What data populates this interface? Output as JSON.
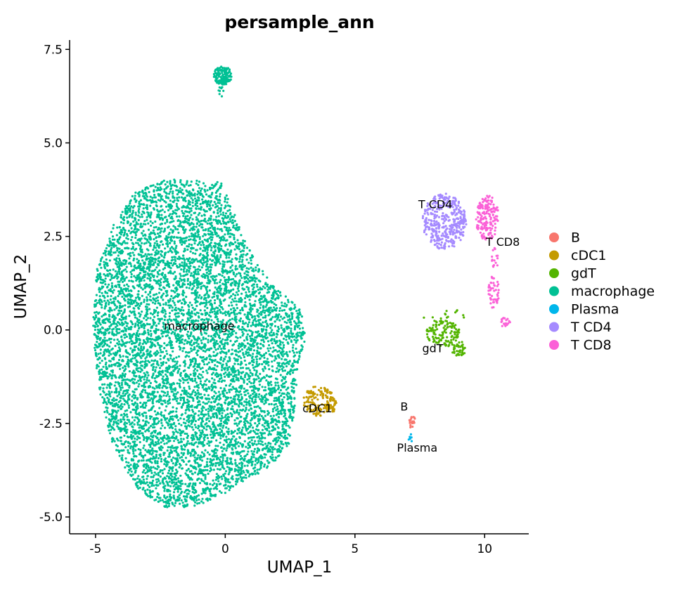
{
  "chart_data": {
    "type": "scatter",
    "title": "persample_ann",
    "xlabel": "UMAP_1",
    "ylabel": "UMAP_2",
    "xlim": [
      -6.0,
      11.7
    ],
    "ylim": [
      -5.45,
      7.75
    ],
    "x_ticks": [
      -5,
      0,
      5,
      10
    ],
    "x_tick_labels": [
      "-5",
      "0",
      "5",
      "10"
    ],
    "y_ticks": [
      -5.0,
      -2.5,
      0.0,
      2.5,
      5.0,
      7.5
    ],
    "y_tick_labels": [
      "-5.0",
      "-2.5",
      "0.0",
      "2.5",
      "5.0",
      "7.5"
    ],
    "grid": false,
    "legend_position": "right",
    "series": [
      {
        "name": "B",
        "color": "#F8766D",
        "label": "B",
        "label_pos": [
          6.9,
          -2.15
        ],
        "clusters": [
          {
            "shape": "ellipse",
            "cx": 7.2,
            "cy": -2.45,
            "rx": 0.12,
            "ry": 0.18,
            "n": 20
          }
        ]
      },
      {
        "name": "cDC1",
        "color": "#C49A00",
        "label": "cDC1",
        "label_pos": [
          3.55,
          -2.2
        ],
        "clusters": [
          {
            "shape": "ellipse",
            "cx": 3.6,
            "cy": -1.9,
            "rx": 0.6,
            "ry": 0.4,
            "n": 130
          },
          {
            "shape": "ellipse",
            "cx": 4.1,
            "cy": -2.0,
            "rx": 0.2,
            "ry": 0.2,
            "n": 35
          }
        ]
      },
      {
        "name": "gdT",
        "color": "#53B400",
        "label": "gdT",
        "label_pos": [
          8.0,
          -0.6
        ],
        "clusters": [
          {
            "shape": "ellipse",
            "cx": 8.4,
            "cy": -0.1,
            "rx": 0.65,
            "ry": 0.35,
            "n": 130
          },
          {
            "shape": "ellipse",
            "cx": 9.0,
            "cy": -0.5,
            "rx": 0.3,
            "ry": 0.2,
            "n": 40
          },
          {
            "shape": "ellipse",
            "cx": 8.6,
            "cy": 0.35,
            "rx": 1.0,
            "ry": 0.2,
            "n": 15
          }
        ]
      },
      {
        "name": "macrophage",
        "color": "#00C094",
        "label": "macrophage",
        "label_pos": [
          -1.0,
          0.0
        ],
        "clusters": [
          {
            "shape": "blob",
            "cx": -1.0,
            "cy": -0.3,
            "n": 7600
          },
          {
            "shape": "ellipse",
            "cx": -0.1,
            "cy": 6.8,
            "rx": 0.35,
            "ry": 0.25,
            "n": 140
          },
          {
            "shape": "ellipse",
            "cx": -0.15,
            "cy": 6.45,
            "rx": 0.12,
            "ry": 0.22,
            "n": 12
          }
        ]
      },
      {
        "name": "Plasma",
        "color": "#00B6EB",
        "label": "Plasma",
        "label_pos": [
          7.4,
          -3.25
        ],
        "clusters": [
          {
            "shape": "ellipse",
            "cx": 7.15,
            "cy": -2.9,
            "rx": 0.08,
            "ry": 0.12,
            "n": 8
          }
        ]
      },
      {
        "name": "T CD4",
        "color": "#A58AFF",
        "label": "T CD4",
        "label_pos": [
          8.1,
          3.25
        ],
        "clusters": [
          {
            "shape": "ellipse",
            "cx": 8.45,
            "cy": 2.9,
            "rx": 0.85,
            "ry": 0.75,
            "n": 380
          }
        ]
      },
      {
        "name": "T CD8",
        "color": "#FB61D7",
        "label": "T CD8",
        "label_pos": [
          10.7,
          2.25
        ],
        "clusters": [
          {
            "shape": "ellipse",
            "cx": 10.1,
            "cy": 3.0,
            "rx": 0.45,
            "ry": 0.6,
            "n": 170
          },
          {
            "shape": "ellipse",
            "cx": 10.35,
            "cy": 1.0,
            "rx": 0.22,
            "ry": 0.45,
            "n": 50
          },
          {
            "shape": "ellipse",
            "cx": 10.8,
            "cy": 0.2,
            "rx": 0.18,
            "ry": 0.15,
            "n": 18
          },
          {
            "shape": "ellipse",
            "cx": 10.4,
            "cy": 1.9,
            "rx": 0.12,
            "ry": 0.35,
            "n": 15
          }
        ]
      }
    ]
  }
}
